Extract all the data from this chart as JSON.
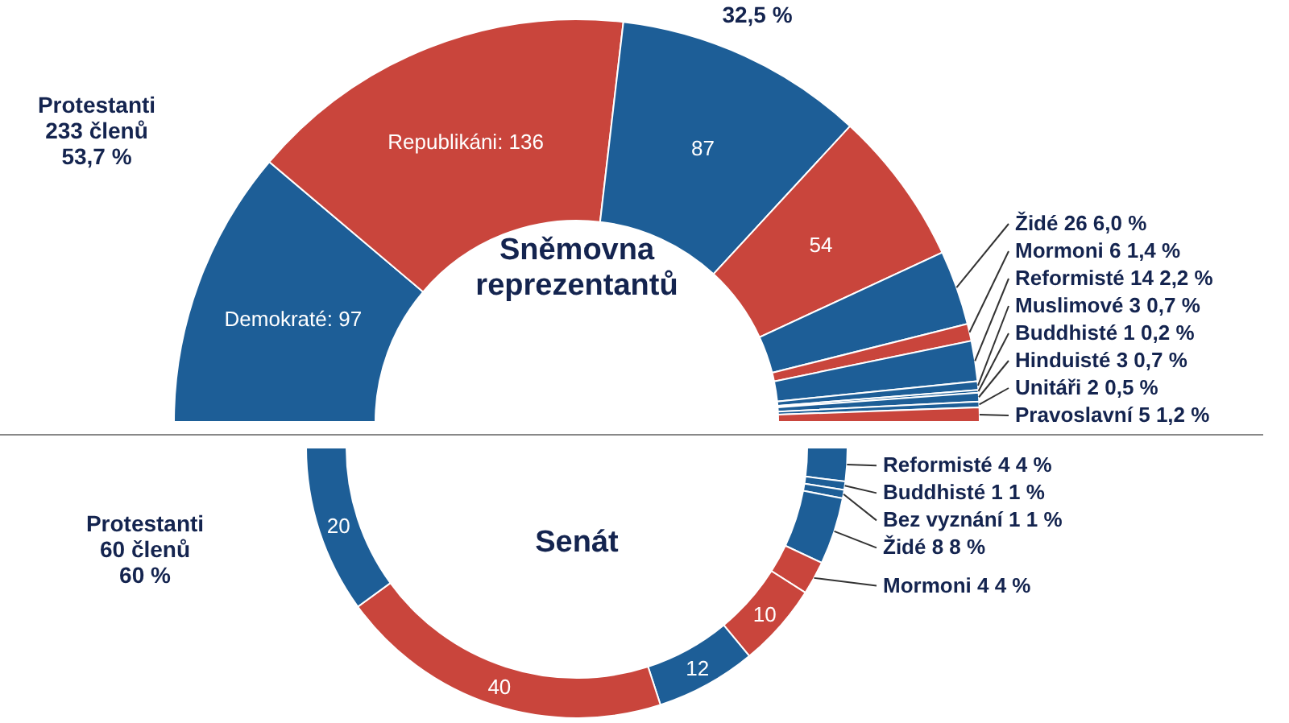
{
  "chart_data": [
    {
      "type": "donut",
      "title": "Sněmovna\nreprezentantů",
      "categories": [
        null,
        null,
        null,
        null,
        "Židé 26 6,0 %",
        "Mormoni 6 1,4 %",
        "Reformisté 14 2,2 %",
        "Muslimové 3 0,7 %",
        "Buddhisté 1 0,2 %",
        "Hinduisté 3 0,7 %",
        "Unitáři 2 0,5 %",
        "Pravoslavní 5 1,2 %"
      ],
      "values": [
        97,
        136,
        87,
        54,
        26,
        6,
        14,
        3,
        1,
        3,
        2,
        5
      ],
      "colors": [
        "#1d5e97",
        "#c9453c",
        "#1d5e97",
        "#c9453c",
        "#1d5e97",
        "#c9453c",
        "#1d5e97",
        "#1d5e97",
        "#1d5e97",
        "#1d5e97",
        "#1d5e97",
        "#c9453c"
      ],
      "value_labels": [
        "Demokraté: 97",
        "Republikáni: 136",
        "87",
        "54",
        null,
        null,
        null,
        null,
        null,
        null,
        null,
        null
      ],
      "annotations": [
        "Protestanti\n233 členů\n53,7 %",
        "32,5 %"
      ]
    },
    {
      "type": "donut",
      "title": "Senát",
      "categories": [
        "Reformisté 4 4 %",
        "Buddhisté 1 1 %",
        "Bez vyznání 1 1 %",
        "Židé 8 8 %",
        "Mormoni 4 4 %",
        null,
        null,
        null,
        null
      ],
      "values": [
        4,
        1,
        1,
        8,
        4,
        10,
        12,
        40,
        20
      ],
      "colors": [
        "#1d5e97",
        "#1d5e97",
        "#1d5e97",
        "#1d5e97",
        "#c9453c",
        "#c9453c",
        "#1d5e97",
        "#c9453c",
        "#1d5e97"
      ],
      "value_labels": [
        null,
        null,
        null,
        null,
        null,
        "10",
        "12",
        "40",
        "20"
      ],
      "annotations": [
        "Protestanti\n60 členů\n60 %"
      ]
    }
  ]
}
